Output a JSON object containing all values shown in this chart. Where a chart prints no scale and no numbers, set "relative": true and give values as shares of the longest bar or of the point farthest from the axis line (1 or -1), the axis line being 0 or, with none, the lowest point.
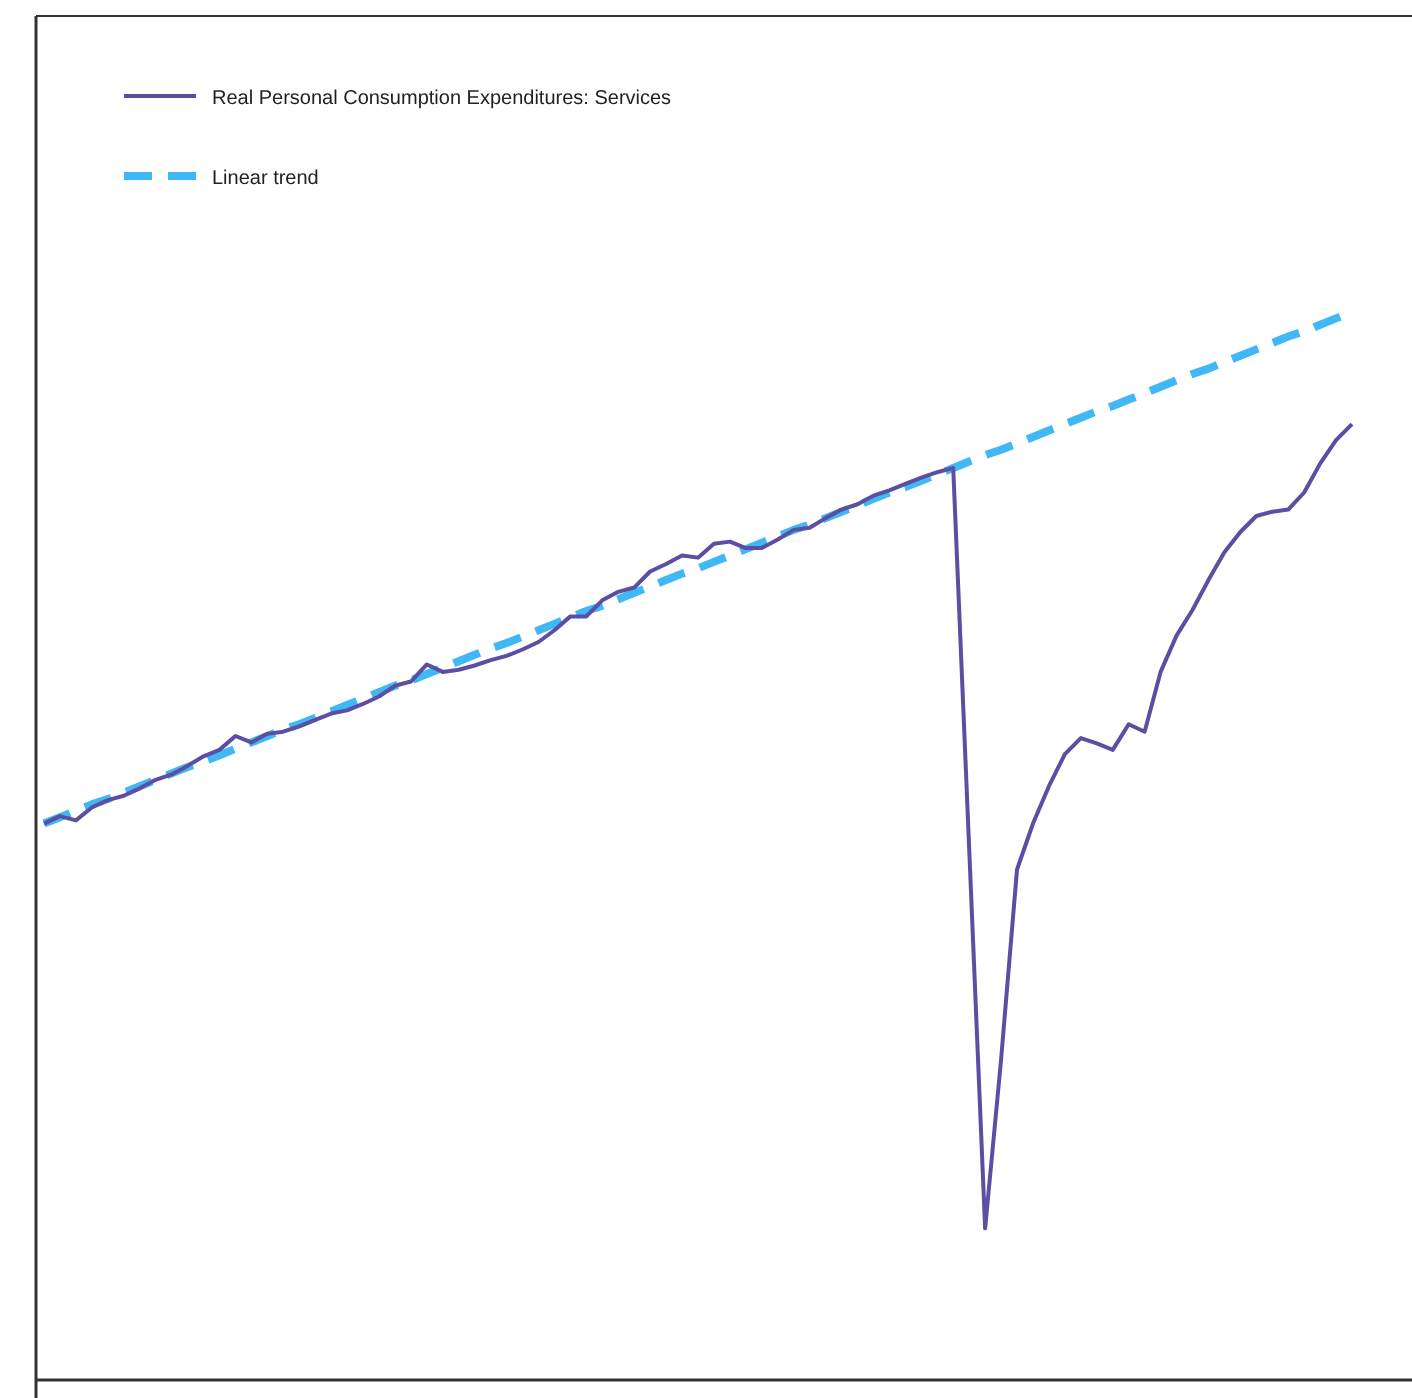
{
  "chart_data": {
    "type": "line",
    "relative": true,
    "legend": "top left",
    "categories": [
      null,
      null,
      null,
      null,
      null,
      null,
      null,
      null,
      null,
      null,
      null,
      null,
      null,
      null,
      null,
      null,
      null,
      null,
      null,
      null,
      null,
      null,
      null,
      null,
      null,
      null,
      null,
      null,
      null,
      null,
      null,
      null,
      null,
      null,
      null,
      null,
      null,
      null,
      null,
      null,
      null,
      null,
      null,
      null,
      null,
      null,
      null,
      null,
      null,
      null,
      null,
      null,
      null,
      null,
      null,
      null,
      null,
      null,
      null,
      null,
      null,
      null,
      null,
      null,
      null,
      null,
      null,
      null,
      null,
      null,
      null,
      null,
      null,
      null,
      null,
      null,
      null,
      null,
      null,
      null,
      null,
      null,
      null
    ],
    "series": [
      {
        "name": "Real Personal Consumption Expenditures: Services",
        "color": "#5b4ea3",
        "line_style": "solid",
        "values": [
          0.521,
          0.528,
          0.524,
          0.536,
          0.543,
          0.547,
          0.554,
          0.562,
          0.567,
          0.575,
          0.584,
          0.59,
          0.603,
          0.597,
          0.605,
          0.607,
          0.612,
          0.618,
          0.624,
          0.627,
          0.633,
          0.64,
          0.65,
          0.654,
          0.67,
          0.663,
          0.665,
          0.669,
          0.674,
          0.678,
          0.684,
          0.691,
          0.702,
          0.715,
          0.715,
          0.73,
          0.738,
          0.742,
          0.757,
          0.764,
          0.772,
          0.77,
          0.783,
          0.785,
          0.779,
          0.779,
          0.787,
          0.796,
          0.798,
          0.807,
          0.815,
          0.82,
          0.828,
          0.833,
          0.839,
          0.845,
          0.85,
          0.854,
          0.498,
          0.142,
          0.3,
          0.478,
          0.521,
          0.556,
          0.586,
          0.601,
          0.596,
          0.59,
          0.614,
          0.607,
          0.663,
          0.697,
          0.721,
          0.749,
          0.775,
          0.794,
          0.809,
          0.813,
          0.815,
          0.831,
          0.858,
          0.88,
          0.895
        ]
      },
      {
        "name": "Linear trend",
        "color": "#3fb8f5",
        "line_style": "dashed",
        "values": [
          0.521,
          0.527,
          0.533,
          0.539,
          0.544,
          0.55,
          0.556,
          0.562,
          0.568,
          0.574,
          0.579,
          0.585,
          0.591,
          0.597,
          0.603,
          0.609,
          0.614,
          0.62,
          0.626,
          0.632,
          0.638,
          0.644,
          0.65,
          0.655,
          0.661,
          0.667,
          0.673,
          0.679,
          0.685,
          0.69,
          0.696,
          0.702,
          0.708,
          0.714,
          0.72,
          0.725,
          0.731,
          0.737,
          0.743,
          0.749,
          0.755,
          0.76,
          0.766,
          0.772,
          0.778,
          0.784,
          0.79,
          0.796,
          0.801,
          0.807,
          0.813,
          0.819,
          0.825,
          0.831,
          0.836,
          0.842,
          0.848,
          0.854,
          0.86,
          0.866,
          0.871,
          0.877,
          0.883,
          0.889,
          0.895,
          0.901,
          0.907,
          0.912,
          0.918,
          0.924,
          0.93,
          0.936,
          0.942,
          0.947,
          0.953,
          0.959,
          0.965,
          0.971,
          0.977,
          0.982,
          0.988,
          0.994,
          1
        ]
      }
    ]
  }
}
